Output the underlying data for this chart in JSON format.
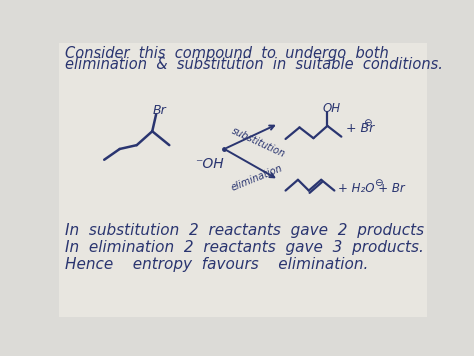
{
  "bg_color": "#dcdbd7",
  "ink_color": "#2a3570",
  "title_line1": "Consider  this  compound  to  undergo  both",
  "title_line2": "elimination  &  substitution  in  suitable  conditions.",
  "line1": "In  substitution  2  reactants  gave  2  products",
  "line2": "In  elimination  2  reactants  gave  3  products.",
  "line3": "Hence    entropy  favours    elimination.",
  "subst_label": "substitution",
  "elim_label": "elimination",
  "oh_label": "-OH",
  "br_label": "Br",
  "oh_top": "OH"
}
